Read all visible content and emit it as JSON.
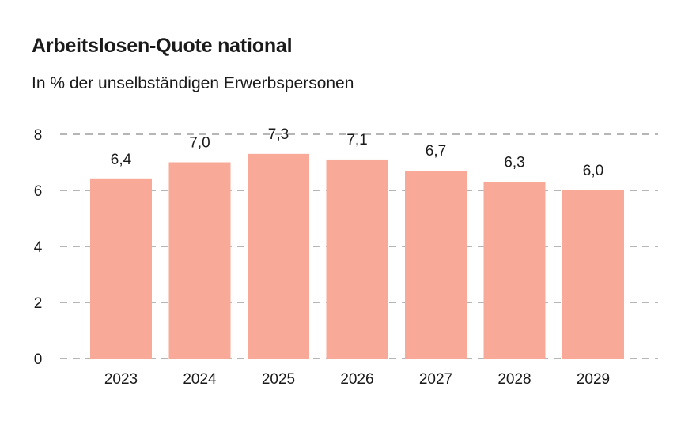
{
  "chart_data": {
    "type": "bar",
    "title": "Arbeitslosen-Quote national",
    "subtitle": "In % der unselbständigen Erwerbspersonen",
    "categories": [
      "2023",
      "2024",
      "2025",
      "2026",
      "2027",
      "2028",
      "2029"
    ],
    "values": [
      6.4,
      7.0,
      7.3,
      7.1,
      6.7,
      6.3,
      6.0
    ],
    "value_labels": [
      "6,4",
      "7,0",
      "7,3",
      "7,1",
      "6,7",
      "6,3",
      "6,0"
    ],
    "yticks": [
      0,
      2,
      4,
      6,
      8
    ],
    "ylim": [
      0,
      8
    ],
    "grid": true,
    "legend": "none",
    "bar_color": "#f8a998",
    "grid_color": "#9e9e9e"
  }
}
